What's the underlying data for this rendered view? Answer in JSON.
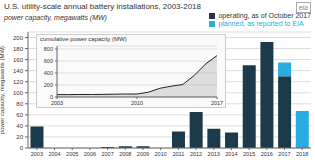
{
  "chart_data": [
    {
      "type": "bar",
      "stacked": true,
      "title": "U.S. utility-scale annual battery installations, 2003-2018",
      "subtitle": "power capacity, megawatts (MW)",
      "y_label": "power capacity, megawatts (MW)",
      "annotations": [
        "eia"
      ],
      "categories": [
        2003,
        2004,
        2005,
        2006,
        2007,
        2008,
        2009,
        2010,
        2011,
        2012,
        2013,
        2014,
        2015,
        2016,
        2017,
        2018
      ],
      "series": [
        {
          "name": "operating, as of October 2017",
          "color": "#1b3a4b",
          "values": [
            39,
            0,
            0,
            0,
            2,
            3,
            3,
            0,
            30,
            65,
            35,
            28,
            150,
            192,
            130,
            0
          ]
        },
        {
          "name": "planned, as reported to EIA",
          "color": "#29aae1",
          "values": [
            0,
            0,
            0,
            0,
            0,
            0,
            0,
            0,
            0,
            0,
            0,
            0,
            0,
            0,
            25,
            67
          ]
        }
      ],
      "ylim": [
        0,
        210
      ],
      "yticks": [
        0,
        20,
        40,
        60,
        80,
        100,
        120,
        140,
        160,
        180,
        200
      ],
      "grid": true,
      "legend": "top right"
    },
    {
      "type": "area",
      "title": "cumulative power capacity (MW)",
      "x": [
        2003,
        2004,
        2005,
        2006,
        2007,
        2008,
        2009,
        2010,
        2011,
        2012,
        2013,
        2014,
        2015,
        2016,
        2017
      ],
      "values": [
        40,
        40,
        42,
        42,
        44,
        47,
        50,
        50,
        80,
        145,
        180,
        208,
        358,
        550,
        690
      ],
      "color": "#222222",
      "xlim": [
        2003,
        2017
      ],
      "xticks": [
        2003,
        2010,
        2017
      ],
      "ylim": [
        0,
        850
      ],
      "yticks": [
        0,
        200,
        400,
        600,
        800
      ],
      "grid": true
    }
  ]
}
